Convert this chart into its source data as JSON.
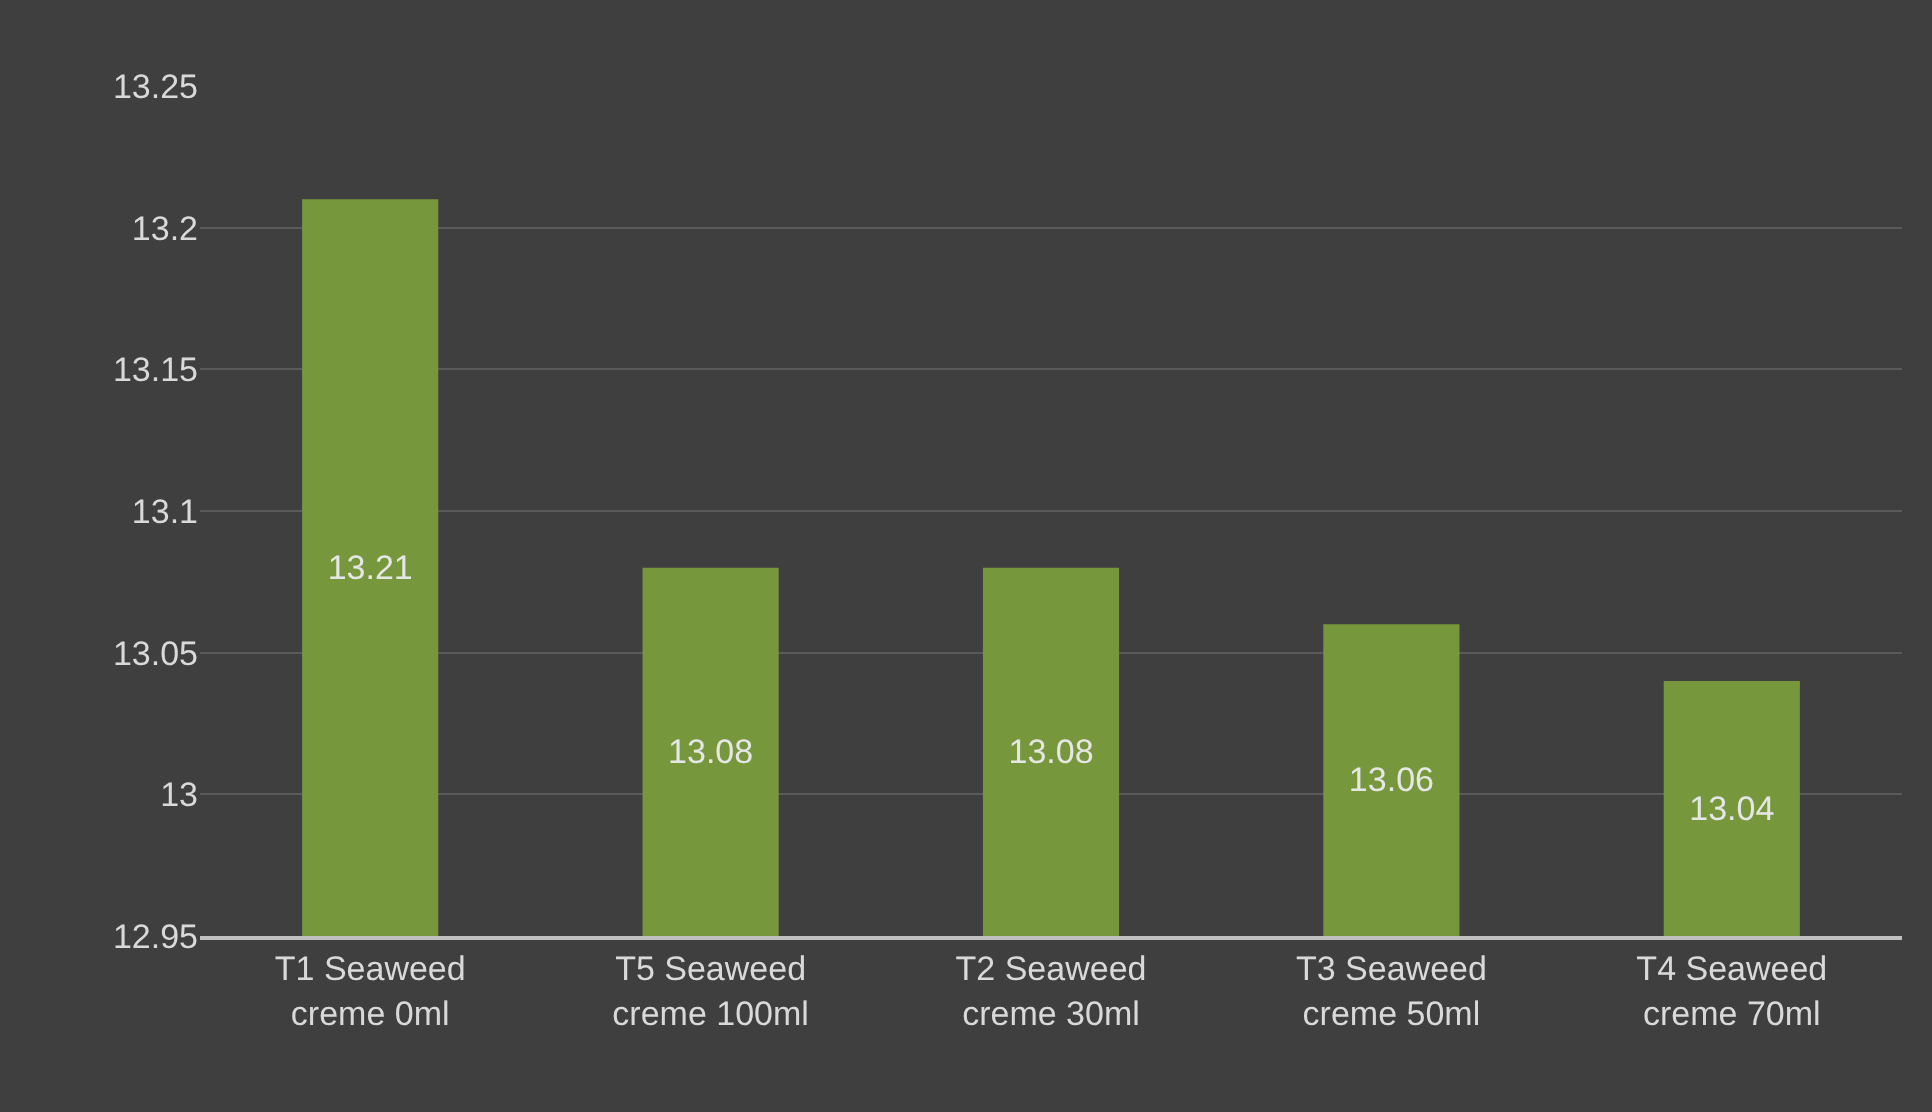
{
  "chart_data": {
    "type": "bar",
    "categories": [
      "T1 Seaweed\ncreme 0ml",
      "T5 Seaweed\ncreme 100ml",
      "T2 Seaweed\ncreme 30ml",
      "T3 Seaweed\ncreme 50ml",
      "T4 Seaweed\ncreme 70ml"
    ],
    "values": [
      13.21,
      13.08,
      13.08,
      13.06,
      13.04
    ],
    "color": "#77973d",
    "ylim": [
      12.95,
      13.25
    ],
    "yticks": [
      12.95,
      13,
      13.05,
      13.1,
      13.15,
      13.2,
      13.25
    ],
    "grid": "y",
    "data_labels": true
  }
}
